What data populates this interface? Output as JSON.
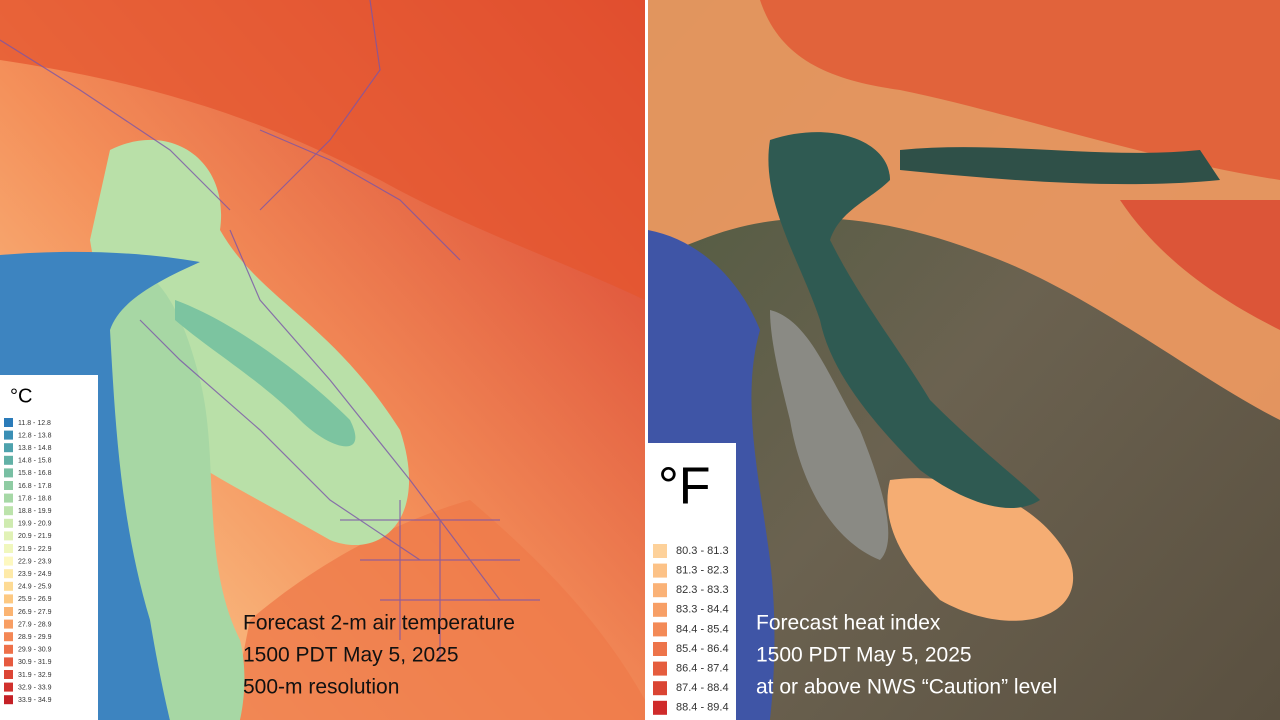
{
  "left_panel": {
    "legend_title": "°C",
    "legend": [
      {
        "label": "11.8 - 12.8",
        "color": "#2b7bb9"
      },
      {
        "label": "12.8 - 13.8",
        "color": "#3a8fb5"
      },
      {
        "label": "13.8 - 14.8",
        "color": "#4ea2ad"
      },
      {
        "label": "14.8 - 15.8",
        "color": "#62b1a6"
      },
      {
        "label": "15.8 - 16.8",
        "color": "#78bfa3"
      },
      {
        "label": "16.8 - 17.8",
        "color": "#8fcca3"
      },
      {
        "label": "17.8 - 18.8",
        "color": "#a6d8a6"
      },
      {
        "label": "18.8 - 19.9",
        "color": "#bce3ab"
      },
      {
        "label": "19.9 - 20.9",
        "color": "#cfebb0"
      },
      {
        "label": "20.9 - 21.9",
        "color": "#e1f2b6"
      },
      {
        "label": "21.9 - 22.9",
        "color": "#f0f7bd"
      },
      {
        "label": "22.9 - 23.9",
        "color": "#fdf8c0"
      },
      {
        "label": "23.9 - 24.9",
        "color": "#feeaa8"
      },
      {
        "label": "24.9 - 25.9",
        "color": "#fedb94"
      },
      {
        "label": "25.9 - 26.9",
        "color": "#fdc982"
      },
      {
        "label": "26.9 - 27.9",
        "color": "#fbb472"
      },
      {
        "label": "27.9 - 28.9",
        "color": "#f89e63"
      },
      {
        "label": "28.9 - 29.9",
        "color": "#f48755"
      },
      {
        "label": "29.9 - 30.9",
        "color": "#ee7049"
      },
      {
        "label": "30.9 - 31.9",
        "color": "#e65a3f"
      },
      {
        "label": "31.9 - 32.9",
        "color": "#dc4535"
      },
      {
        "label": "32.9 - 33.9",
        "color": "#d1312d"
      },
      {
        "label": "33.9 - 34.9",
        "color": "#c42026"
      }
    ],
    "caption": [
      "Forecast 2-m air temperature",
      "1500 PDT May 5, 2025",
      "500-m resolution"
    ]
  },
  "right_panel": {
    "legend_title": "°F",
    "legend": [
      {
        "label": "80.3 - 81.3",
        "color": "#fdd19a"
      },
      {
        "label": "81.3 - 82.3",
        "color": "#fcc287"
      },
      {
        "label": "82.3 - 83.3",
        "color": "#fab277"
      },
      {
        "label": "83.3 - 84.4",
        "color": "#f79f66"
      },
      {
        "label": "84.4 - 85.4",
        "color": "#f38a57"
      },
      {
        "label": "85.4 - 86.4",
        "color": "#ed744a"
      },
      {
        "label": "86.4 - 87.4",
        "color": "#e55d3e"
      },
      {
        "label": "87.4 - 88.4",
        "color": "#da4433"
      },
      {
        "label": "88.4 - 89.4",
        "color": "#cf2b2b"
      }
    ],
    "caption": [
      "Forecast heat index",
      "1500 PDT May 5, 2025",
      "at or above NWS “Caution” level"
    ]
  }
}
